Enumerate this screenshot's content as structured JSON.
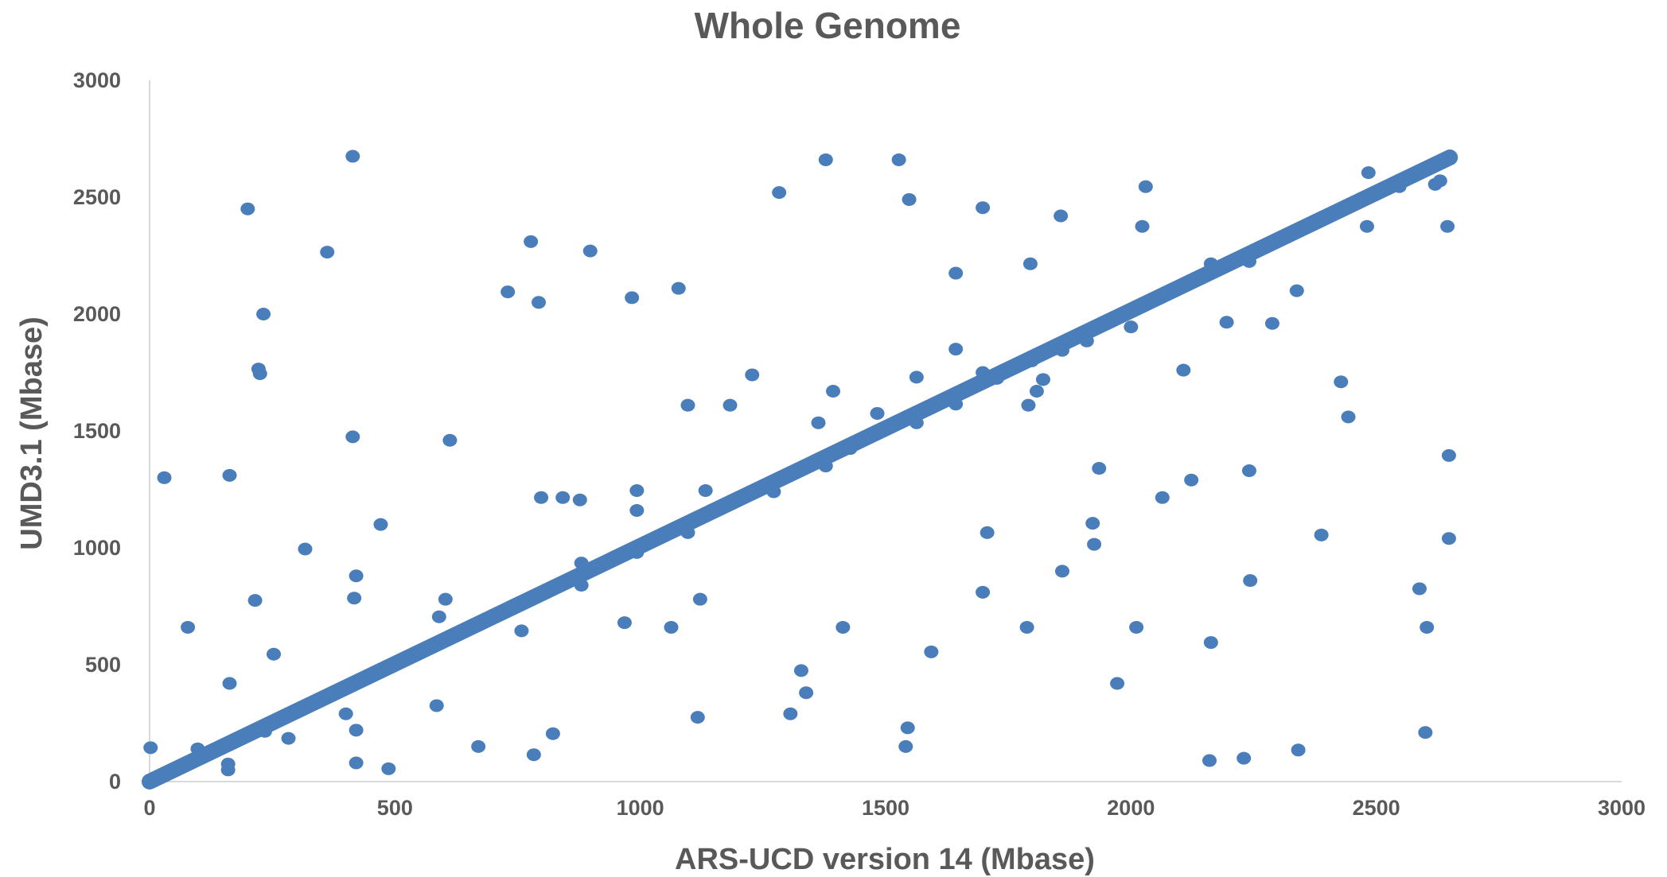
{
  "chart_data": {
    "type": "scatter",
    "title": "Whole Genome",
    "xlabel": "ARS-UCD version 14 (Mbase)",
    "ylabel": "UMD3.1 (Mbase)",
    "xlim": [
      0,
      3000
    ],
    "ylim": [
      0,
      3000
    ],
    "xticks": [
      "0",
      "500",
      "1000",
      "1500",
      "2000",
      "2500",
      "3000"
    ],
    "yticks": [
      "0",
      "500",
      "1000",
      "1500",
      "2000",
      "2500",
      "3000"
    ],
    "grid": false,
    "legend": "none",
    "color": "#4A7EBB",
    "diagonal_band": {
      "from": [
        0,
        0
      ],
      "to": [
        2650,
        2670
      ],
      "description_shown": "dense colinear points"
    },
    "points": [
      [
        2,
        145
      ],
      [
        30,
        1300
      ],
      [
        78,
        660
      ],
      [
        98,
        140
      ],
      [
        163,
        1310
      ],
      [
        163,
        420
      ],
      [
        160,
        75
      ],
      [
        160,
        50
      ],
      [
        200,
        2450
      ],
      [
        215,
        775
      ],
      [
        222,
        1765
      ],
      [
        225,
        1745
      ],
      [
        232,
        2000
      ],
      [
        253,
        545
      ],
      [
        235,
        215
      ],
      [
        283,
        185
      ],
      [
        317,
        995
      ],
      [
        362,
        2265
      ],
      [
        400,
        290
      ],
      [
        414,
        2675
      ],
      [
        414,
        1475
      ],
      [
        417,
        785
      ],
      [
        421,
        880
      ],
      [
        421,
        220
      ],
      [
        421,
        80
      ],
      [
        471,
        1100
      ],
      [
        487,
        55
      ],
      [
        585,
        325
      ],
      [
        590,
        705
      ],
      [
        603,
        780
      ],
      [
        612,
        1460
      ],
      [
        670,
        150
      ],
      [
        730,
        2095
      ],
      [
        758,
        645
      ],
      [
        777,
        2310
      ],
      [
        783,
        115
      ],
      [
        793,
        2050
      ],
      [
        798,
        1215
      ],
      [
        822,
        205
      ],
      [
        842,
        1215
      ],
      [
        877,
        1205
      ],
      [
        880,
        840
      ],
      [
        880,
        935
      ],
      [
        898,
        2270
      ],
      [
        968,
        680
      ],
      [
        983,
        2070
      ],
      [
        993,
        1245
      ],
      [
        993,
        1160
      ],
      [
        993,
        980
      ],
      [
        1063,
        660
      ],
      [
        1078,
        2110
      ],
      [
        1097,
        1610
      ],
      [
        1097,
        1065
      ],
      [
        1117,
        275
      ],
      [
        1122,
        780
      ],
      [
        1133,
        1245
      ],
      [
        1183,
        1610
      ],
      [
        1228,
        1740
      ],
      [
        1272,
        1240
      ],
      [
        1283,
        2520
      ],
      [
        1306,
        290
      ],
      [
        1328,
        475
      ],
      [
        1338,
        380
      ],
      [
        1363,
        1535
      ],
      [
        1378,
        2660
      ],
      [
        1378,
        1350
      ],
      [
        1393,
        1670
      ],
      [
        1413,
        660
      ],
      [
        1428,
        1425
      ],
      [
        1483,
        1575
      ],
      [
        1527,
        2660
      ],
      [
        1541,
        150
      ],
      [
        1545,
        230
      ],
      [
        1548,
        2490
      ],
      [
        1563,
        1730
      ],
      [
        1563,
        1535
      ],
      [
        1593,
        555
      ],
      [
        1643,
        2175
      ],
      [
        1643,
        1850
      ],
      [
        1643,
        1615
      ],
      [
        1698,
        2455
      ],
      [
        1698,
        1750
      ],
      [
        1698,
        810
      ],
      [
        1707,
        1065
      ],
      [
        1727,
        1725
      ],
      [
        1788,
        660
      ],
      [
        1791,
        1610
      ],
      [
        1795,
        2215
      ],
      [
        1798,
        1800
      ],
      [
        1808,
        1670
      ],
      [
        1821,
        1720
      ],
      [
        1857,
        2420
      ],
      [
        1860,
        900
      ],
      [
        1860,
        1845
      ],
      [
        1910,
        1885
      ],
      [
        1922,
        1105
      ],
      [
        1925,
        1015
      ],
      [
        1935,
        1340
      ],
      [
        1972,
        420
      ],
      [
        2000,
        1945
      ],
      [
        2011,
        660
      ],
      [
        2023,
        2375
      ],
      [
        2030,
        2545
      ],
      [
        2064,
        1215
      ],
      [
        2107,
        1760
      ],
      [
        2123,
        1290
      ],
      [
        2163,
        2215
      ],
      [
        2163,
        595
      ],
      [
        2160,
        90
      ],
      [
        2195,
        1965
      ],
      [
        2230,
        100
      ],
      [
        2241,
        2225
      ],
      [
        2241,
        1330
      ],
      [
        2243,
        860
      ],
      [
        2288,
        1960
      ],
      [
        2338,
        2100
      ],
      [
        2341,
        135
      ],
      [
        2388,
        1055
      ],
      [
        2428,
        1710
      ],
      [
        2443,
        1560
      ],
      [
        2484,
        2605
      ],
      [
        2481,
        2375
      ],
      [
        2588,
        825
      ],
      [
        2600,
        210
      ],
      [
        2603,
        660
      ],
      [
        2620,
        2555
      ],
      [
        2630,
        2570
      ],
      [
        2645,
        2375
      ],
      [
        2648,
        1395
      ],
      [
        2648,
        1040
      ],
      [
        2547,
        2545
      ],
      [
        2552,
        2565
      ]
    ]
  }
}
